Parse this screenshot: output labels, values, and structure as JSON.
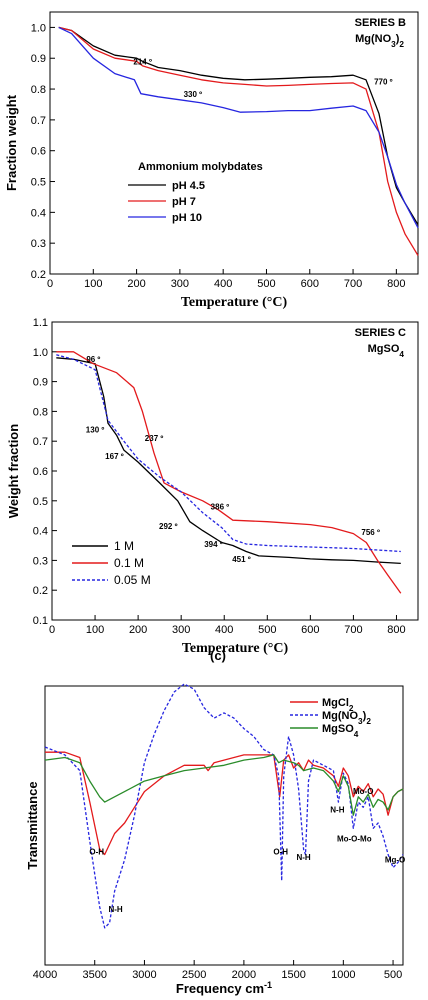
{
  "chart_data": [
    {
      "type": "line",
      "series_label": "SERIES B",
      "subtitle": "Mg(NO3)2",
      "series_label_color": "#2626cc",
      "xlabel": "Temperature (°C)",
      "ylabel": "Fraction weight",
      "xlim": [
        0,
        850
      ],
      "ylim": [
        0.2,
        1.05
      ],
      "xticks": [
        "0",
        "100",
        "200",
        "300",
        "400",
        "500",
        "600",
        "700",
        "800"
      ],
      "yticks": [
        "0.2",
        "0.3",
        "0.4",
        "0.5",
        "0.6",
        "0.7",
        "0.8",
        "0.9",
        "1.0"
      ],
      "legend_title": "Ammonium molybdates",
      "annotations": [
        {
          "text": "214 º",
          "x": 214,
          "y": 0.88
        },
        {
          "text": "330 º",
          "x": 330,
          "y": 0.775
        },
        {
          "text": "770 º",
          "x": 770,
          "y": 0.815
        }
      ],
      "series": [
        {
          "name": "pH 4.5",
          "color": "#000000",
          "dash": "",
          "x": [
            20,
            50,
            100,
            150,
            200,
            214,
            250,
            300,
            350,
            400,
            450,
            500,
            550,
            600,
            650,
            700,
            730,
            760,
            780,
            800,
            820,
            850
          ],
          "y": [
            1.0,
            0.99,
            0.94,
            0.91,
            0.9,
            0.89,
            0.87,
            0.86,
            0.845,
            0.835,
            0.83,
            0.832,
            0.835,
            0.838,
            0.84,
            0.845,
            0.83,
            0.72,
            0.58,
            0.48,
            0.43,
            0.36
          ]
        },
        {
          "name": "pH 7",
          "color": "#e31a1c",
          "dash": "",
          "x": [
            20,
            50,
            100,
            150,
            200,
            214,
            250,
            300,
            350,
            400,
            450,
            500,
            550,
            600,
            650,
            700,
            730,
            760,
            780,
            800,
            820,
            850
          ],
          "y": [
            1.0,
            0.99,
            0.93,
            0.9,
            0.89,
            0.875,
            0.86,
            0.845,
            0.83,
            0.82,
            0.815,
            0.81,
            0.812,
            0.815,
            0.818,
            0.82,
            0.8,
            0.66,
            0.5,
            0.4,
            0.33,
            0.26
          ]
        },
        {
          "name": "pH 10",
          "color": "#2626e0",
          "dash": "",
          "x": [
            20,
            50,
            100,
            150,
            195,
            210,
            250,
            300,
            350,
            400,
            440,
            500,
            550,
            600,
            650,
            700,
            730,
            760,
            780,
            800,
            820,
            850
          ],
          "y": [
            1.0,
            0.98,
            0.9,
            0.85,
            0.83,
            0.785,
            0.775,
            0.765,
            0.755,
            0.74,
            0.725,
            0.727,
            0.73,
            0.73,
            0.738,
            0.745,
            0.73,
            0.66,
            0.58,
            0.49,
            0.43,
            0.35
          ]
        }
      ]
    },
    {
      "type": "line",
      "series_label": "SERIES C",
      "subtitle": "MgSO4",
      "series_label_color": "#2a8c2a",
      "xlabel": "Temperature (°C)",
      "ylabel": "Weight  fraction",
      "xlim": [
        0,
        850
      ],
      "ylim": [
        0.1,
        1.1
      ],
      "xticks": [
        "0",
        "100",
        "200",
        "300",
        "400",
        "500",
        "600",
        "700",
        "800"
      ],
      "yticks": [
        "0.1",
        "0.2",
        "0.3",
        "0.4",
        "0.5",
        "0.6",
        "0.7",
        "0.8",
        "0.9",
        "1.0",
        "1.1"
      ],
      "annotations": [
        {
          "text": "96 º",
          "x": 96,
          "y": 0.965
        },
        {
          "text": "130 º",
          "x": 100,
          "y": 0.73
        },
        {
          "text": "167 º",
          "x": 145,
          "y": 0.64
        },
        {
          "text": "237 º",
          "x": 237,
          "y": 0.7
        },
        {
          "text": "292 º",
          "x": 270,
          "y": 0.405
        },
        {
          "text": "386 º",
          "x": 390,
          "y": 0.47
        },
        {
          "text": "394 º",
          "x": 375,
          "y": 0.345
        },
        {
          "text": "451 º",
          "x": 440,
          "y": 0.295
        },
        {
          "text": "756 º",
          "x": 740,
          "y": 0.385
        }
      ],
      "series": [
        {
          "name": "1 M",
          "color": "#000000",
          "dash": "",
          "x": [
            10,
            50,
            100,
            120,
            130,
            150,
            167,
            200,
            250,
            292,
            320,
            350,
            394,
            420,
            451,
            480,
            550,
            600,
            650,
            700,
            750,
            810
          ],
          "y": [
            0.98,
            0.975,
            0.96,
            0.85,
            0.76,
            0.72,
            0.67,
            0.63,
            0.56,
            0.5,
            0.43,
            0.4,
            0.36,
            0.35,
            0.33,
            0.315,
            0.31,
            0.305,
            0.302,
            0.3,
            0.295,
            0.29
          ]
        },
        {
          "name": "0.1 M",
          "color": "#e31a1c",
          "dash": "",
          "x": [
            10,
            50,
            96,
            150,
            190,
            210,
            237,
            260,
            300,
            350,
            386,
            420,
            500,
            600,
            650,
            700,
            730,
            756,
            780,
            810
          ],
          "y": [
            1.0,
            1.0,
            0.96,
            0.93,
            0.88,
            0.8,
            0.66,
            0.56,
            0.53,
            0.5,
            0.47,
            0.435,
            0.43,
            0.42,
            0.41,
            0.39,
            0.36,
            0.3,
            0.25,
            0.19
          ]
        },
        {
          "name": "0.05 M",
          "color": "#2626e0",
          "dash": "3,2",
          "x": [
            10,
            50,
            100,
            130,
            167,
            200,
            250,
            300,
            350,
            394,
            420,
            451,
            500,
            600,
            700,
            756,
            810
          ],
          "y": [
            0.99,
            0.975,
            0.94,
            0.77,
            0.7,
            0.64,
            0.58,
            0.53,
            0.46,
            0.41,
            0.37,
            0.355,
            0.35,
            0.345,
            0.34,
            0.335,
            0.33
          ]
        }
      ]
    },
    {
      "type": "line",
      "panel_label": "(c)",
      "xlabel": "Frequency cm-1",
      "ylabel": "Transmittance",
      "xlim": [
        4000,
        400
      ],
      "xticks": [
        "4000",
        "3500",
        "3000",
        "2500",
        "2000",
        "1500",
        "1000",
        "500"
      ],
      "annotations": [
        {
          "text": "O-H",
          "x": 3480,
          "y": 0.4
        },
        {
          "text": "N-H",
          "x": 3290,
          "y": 0.18
        },
        {
          "text": "O-H",
          "x": 1630,
          "y": 0.4
        },
        {
          "text": "N-H",
          "x": 1400,
          "y": 0.38
        },
        {
          "text": "N-H",
          "x": 1060,
          "y": 0.56
        },
        {
          "text": "Mo-O",
          "x": 800,
          "y": 0.63
        },
        {
          "text": "Mo-O-Mo",
          "x": 890,
          "y": 0.45
        },
        {
          "text": "Mg-O",
          "x": 480,
          "y": 0.37
        }
      ],
      "series": [
        {
          "name": "MgCl2",
          "color": "#e31a1c",
          "dash": "",
          "x": [
            4000,
            3800,
            3650,
            3550,
            3450,
            3400,
            3300,
            3200,
            3100,
            3000,
            2800,
            2600,
            2400,
            2360,
            2300,
            2000,
            1700,
            1640,
            1600,
            1550,
            1500,
            1450,
            1400,
            1350,
            1300,
            1200,
            1100,
            1050,
            1000,
            950,
            900,
            850,
            800,
            750,
            700,
            650,
            600,
            550,
            500,
            450,
            400
          ],
          "y": [
            0.79,
            0.79,
            0.77,
            0.6,
            0.42,
            0.4,
            0.48,
            0.52,
            0.58,
            0.64,
            0.7,
            0.74,
            0.74,
            0.72,
            0.75,
            0.78,
            0.78,
            0.62,
            0.76,
            0.78,
            0.73,
            0.75,
            0.72,
            0.76,
            0.74,
            0.73,
            0.7,
            0.66,
            0.73,
            0.7,
            0.62,
            0.66,
            0.64,
            0.67,
            0.62,
            0.65,
            0.63,
            0.55,
            0.62,
            0.64,
            0.65
          ]
        },
        {
          "name": "Mg(NO3)2",
          "color": "#2626e0",
          "dash": "3,2",
          "x": [
            4000,
            3800,
            3650,
            3550,
            3450,
            3400,
            3350,
            3300,
            3200,
            3100,
            3000,
            2900,
            2800,
            2700,
            2600,
            2500,
            2400,
            2300,
            2200,
            2100,
            2000,
            1900,
            1800,
            1700,
            1650,
            1620,
            1600,
            1550,
            1500,
            1450,
            1400,
            1380,
            1350,
            1300,
            1200,
            1100,
            1050,
            1000,
            950,
            900,
            850,
            800,
            750,
            700,
            650,
            600,
            550,
            500,
            450,
            400
          ],
          "y": [
            0.81,
            0.78,
            0.72,
            0.45,
            0.2,
            0.12,
            0.14,
            0.26,
            0.38,
            0.55,
            0.75,
            0.86,
            0.95,
            1.02,
            1.05,
            1.03,
            0.96,
            0.92,
            0.94,
            0.92,
            0.88,
            0.85,
            0.8,
            0.78,
            0.7,
            0.3,
            0.7,
            0.85,
            0.78,
            0.65,
            0.42,
            0.4,
            0.68,
            0.76,
            0.74,
            0.72,
            0.6,
            0.71,
            0.67,
            0.5,
            0.6,
            0.58,
            0.62,
            0.5,
            0.52,
            0.47,
            0.4,
            0.35,
            0.37,
            0.4
          ]
        },
        {
          "name": "MgSO4",
          "color": "#2a8c2a",
          "dash": "",
          "x": [
            4000,
            3800,
            3650,
            3550,
            3450,
            3400,
            3300,
            3200,
            3100,
            3000,
            2800,
            2600,
            2400,
            2200,
            2000,
            1800,
            1700,
            1650,
            1600,
            1500,
            1450,
            1400,
            1300,
            1200,
            1100,
            1050,
            1000,
            950,
            900,
            850,
            800,
            750,
            700,
            650,
            600,
            550,
            500,
            450,
            400
          ],
          "y": [
            0.76,
            0.77,
            0.75,
            0.68,
            0.62,
            0.6,
            0.62,
            0.64,
            0.66,
            0.68,
            0.7,
            0.72,
            0.73,
            0.74,
            0.76,
            0.77,
            0.78,
            0.75,
            0.76,
            0.75,
            0.74,
            0.72,
            0.73,
            0.72,
            0.68,
            0.64,
            0.7,
            0.66,
            0.55,
            0.62,
            0.6,
            0.63,
            0.58,
            0.61,
            0.6,
            0.57,
            0.62,
            0.64,
            0.65
          ]
        }
      ]
    }
  ]
}
